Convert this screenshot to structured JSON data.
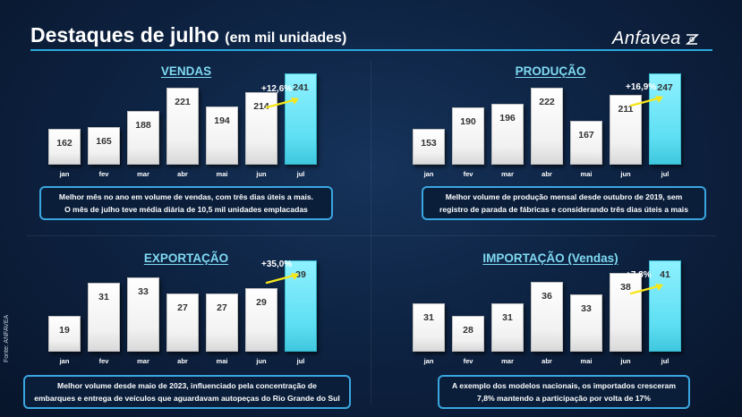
{
  "header": {
    "title": "Destaques de julho",
    "title_sub": "(em mil unidades)",
    "logo_text": "Anfavea"
  },
  "side_source": "Fonte: ANFAVEA",
  "colors": {
    "accent": "#29a8df",
    "highlight_bar": "#5fdff3",
    "panel_title": "#7fdaf2"
  },
  "chart_data": [
    {
      "type": "bar",
      "title": "VENDAS",
      "categories": [
        "jan",
        "fev",
        "mar",
        "abr",
        "mai",
        "jun",
        "jul"
      ],
      "values": [
        162,
        165,
        188,
        221,
        194,
        214,
        241
      ],
      "highlight": "jul",
      "growth_label": "+12,6%",
      "note": [
        "Melhor mês no ano em volume de vendas, com três dias úteis a mais.",
        "O mês de julho teve média diária de 10,5 mil unidades emplacadas"
      ]
    },
    {
      "type": "bar",
      "title": "PRODUÇÃO",
      "categories": [
        "jan",
        "fev",
        "mar",
        "abr",
        "mai",
        "jun",
        "jul"
      ],
      "values": [
        153,
        190,
        196,
        222,
        167,
        211,
        247
      ],
      "highlight": "jul",
      "growth_label": "+16,9%",
      "note": [
        "Melhor volume de produção mensal desde outubro de 2019, sem",
        "registro de parada de fábricas e considerando três dias úteis a mais"
      ]
    },
    {
      "type": "bar",
      "title": "EXPORTAÇÃO",
      "categories": [
        "jan",
        "fev",
        "mar",
        "abr",
        "mai",
        "jun",
        "jul"
      ],
      "values": [
        19,
        31,
        33,
        27,
        27,
        29,
        39
      ],
      "highlight": "jul",
      "growth_label": "+35,0%",
      "note": [
        "Melhor volume desde maio de 2023, influenciado pela concentração de",
        "embarques e entrega de veículos que aguardavam autopeças do Rio Grande do Sul"
      ]
    },
    {
      "type": "bar",
      "title": "IMPORTAÇÃO (Vendas)",
      "categories": [
        "jan",
        "fev",
        "mar",
        "abr",
        "mai",
        "jun",
        "jul"
      ],
      "values": [
        31,
        28,
        31,
        36,
        33,
        38,
        41
      ],
      "highlight": "jul",
      "growth_label": "+7,8%",
      "note": [
        "A exemplo dos modelos nacionais, os importados cresceram",
        "7,8%  mantendo a participação por volta de 17%"
      ]
    }
  ]
}
